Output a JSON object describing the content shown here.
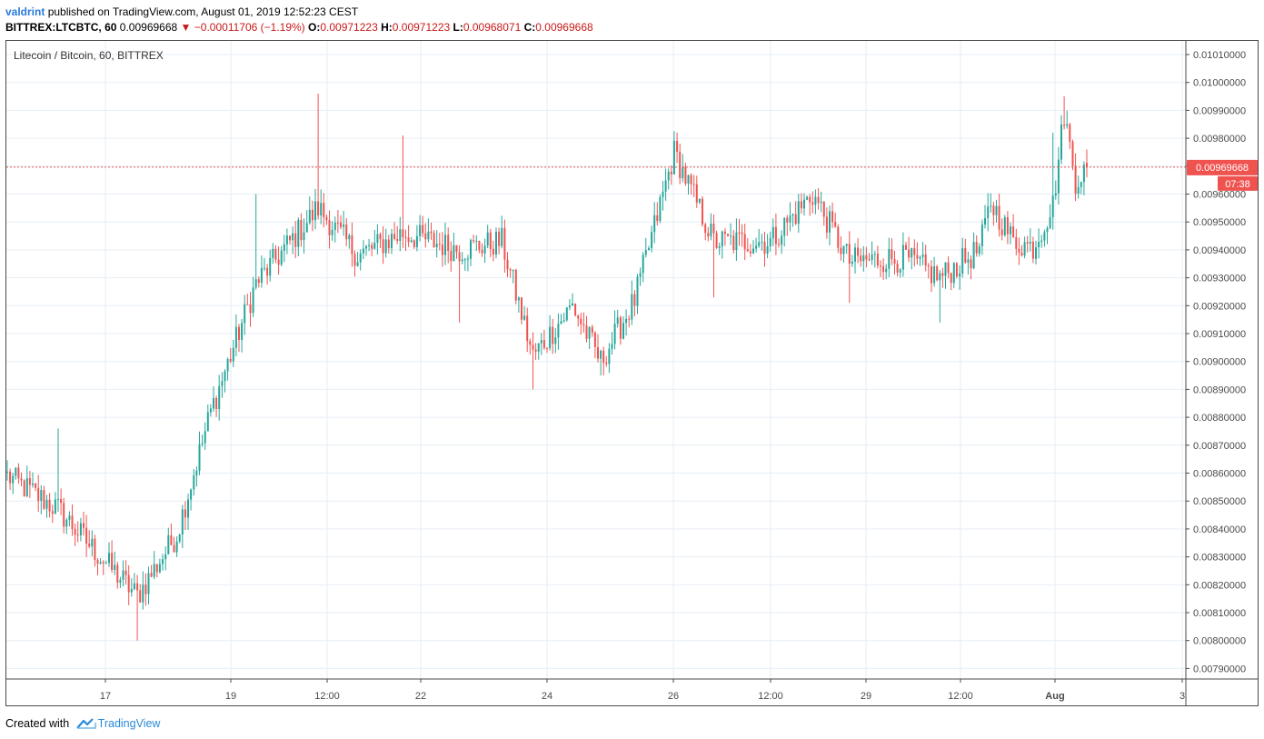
{
  "header": {
    "author": "valdrint",
    "published_text": "published on TradingView.com, August 01, 2019 12:52:23 CEST",
    "symbol": "BITTREX:LTCBTC, 60",
    "last": "0.00969668",
    "arrow": "▼",
    "change": "−0.00011706 (−1.19%)",
    "open_label": "O:",
    "open": "0.00971223",
    "high_label": "H:",
    "high": "0.00971223",
    "low_label": "L:",
    "low": "0.00968071",
    "close_label": "C:",
    "close": "0.00969668"
  },
  "footer": {
    "created_with": "Created with",
    "brand": "TradingView"
  },
  "colors": {
    "up": "#26a69a",
    "down": "#ef5350",
    "grid": "#e6eef5",
    "price_line": "#ef5350",
    "axis_text": "#4a4a4a",
    "frame": "#4a4a4a",
    "header_red": "#c81919",
    "link_blue": "#2b7bd9"
  },
  "chart_data": {
    "type": "candlestick",
    "title": "Litecoin / Bitcoin, 60, BITTREX",
    "ylim": [
      0.00786,
      0.01015
    ],
    "y_ticks": [
      "0.01010000",
      "0.01000000",
      "0.00990000",
      "0.00980000",
      "0.00970000",
      "0.00960000",
      "0.00950000",
      "0.00940000",
      "0.00930000",
      "0.00920000",
      "0.00910000",
      "0.00900000",
      "0.00890000",
      "0.00880000",
      "0.00870000",
      "0.00860000",
      "0.00850000",
      "0.00840000",
      "0.00830000",
      "0.00820000",
      "0.00810000",
      "0.00800000",
      "0.00790000"
    ],
    "x_ticks": [
      "17",
      "19",
      "12:00",
      "22",
      "24",
      "26",
      "12:00",
      "29",
      "12:00",
      "Aug",
      "3"
    ],
    "current_price_label": "0.00969668",
    "countdown_label": "07:38",
    "grid": true,
    "series": [
      {
        "name": "LTCBTC",
        "key_points": [
          {
            "t": "Jul 15 late",
            "close": 0.00859
          },
          {
            "t": "Jul 16 early",
            "high": 0.00876,
            "close": 0.00847
          },
          {
            "t": "Jul 16",
            "low": 0.00824,
            "close": 0.00831
          },
          {
            "t": "Jul 16 late",
            "low": 0.008,
            "close": 0.00816
          },
          {
            "t": "Jul 17",
            "close": 0.00838
          },
          {
            "t": "Jul 17 late",
            "close": 0.00882
          },
          {
            "t": "Jul 18",
            "high": 0.0096,
            "close": 0.00928
          },
          {
            "t": "Jul 19",
            "high": 0.00996,
            "close": 0.00955
          },
          {
            "t": "Jul 20",
            "close": 0.00938
          },
          {
            "t": "Jul 20 12:00",
            "high": 0.00981,
            "close": 0.00946
          },
          {
            "t": "Jul 21",
            "low": 0.00914,
            "close": 0.0094
          },
          {
            "t": "Jul 22",
            "close": 0.00943
          },
          {
            "t": "Jul 22 late",
            "low": 0.0089,
            "close": 0.00902
          },
          {
            "t": "Jul 23",
            "close": 0.0092
          },
          {
            "t": "Jul 23 late",
            "low": 0.00895,
            "close": 0.009
          },
          {
            "t": "Jul 24",
            "close": 0.00922
          },
          {
            "t": "Jul 24 12:00",
            "high": 0.0098,
            "close": 0.00975
          },
          {
            "t": "Jul 25",
            "low": 0.00923,
            "close": 0.00943
          },
          {
            "t": "Jul 26",
            "close": 0.00943
          },
          {
            "t": "Jul 26 late",
            "high": 0.00961,
            "close": 0.0096
          },
          {
            "t": "Jul 27",
            "low": 0.00921,
            "close": 0.00936
          },
          {
            "t": "Jul 28",
            "close": 0.00937
          },
          {
            "t": "Jul 29",
            "low": 0.00914,
            "close": 0.0093
          },
          {
            "t": "Jul 29 late",
            "close": 0.0094
          },
          {
            "t": "Jul 30",
            "close": 0.00957
          },
          {
            "t": "Jul 31",
            "close": 0.00943
          },
          {
            "t": "Jul 31 late",
            "close": 0.00941
          },
          {
            "t": "Jul 31 end",
            "high": 0.00982,
            "close": 0.00956
          },
          {
            "t": "Aug 01",
            "high": 0.00995,
            "close": 0.00989
          },
          {
            "t": "Aug 01 late",
            "close": 0.00965
          },
          {
            "t": "last",
            "open": 0.00971223,
            "high": 0.00971223,
            "low": 0.00968071,
            "close": 0.00969668
          }
        ]
      }
    ]
  }
}
